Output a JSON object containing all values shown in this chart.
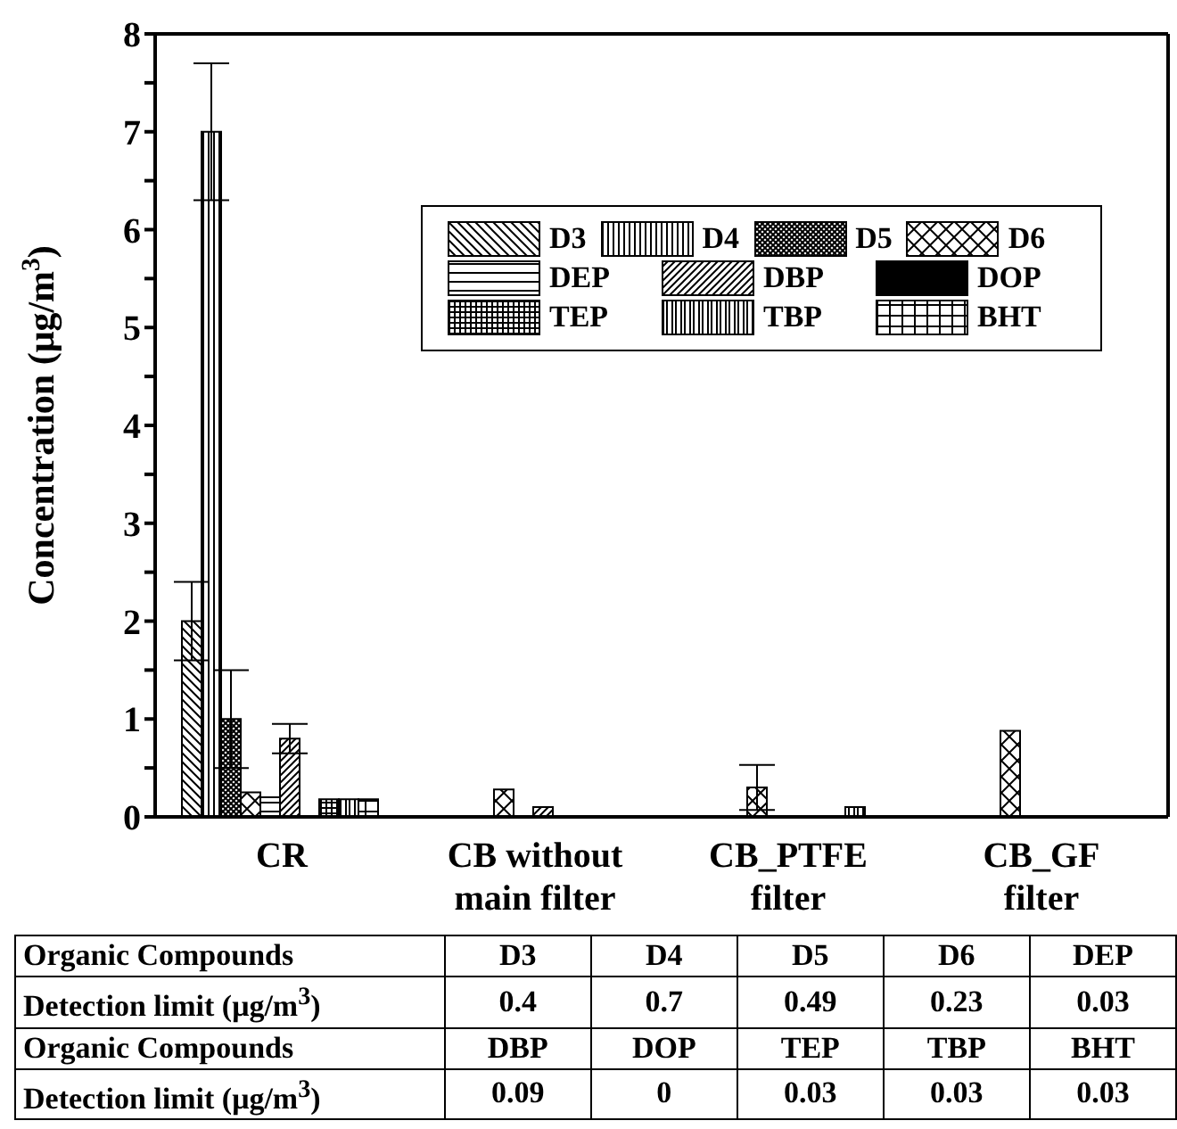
{
  "chart_data": {
    "type": "bar",
    "ylabel": "Concentration (μg/m$^{3}$)",
    "categories": [
      "CR",
      "CB without main filter",
      "CB_PTFE filter",
      "CB_GF filter"
    ],
    "series": [
      {
        "name": "D3",
        "color": "#000000",
        "values": [
          2.0,
          null,
          null,
          null
        ],
        "errors": [
          0.4,
          null,
          null,
          null
        ]
      },
      {
        "name": "D4",
        "color": "#000000",
        "values": [
          7.0,
          null,
          null,
          null
        ],
        "errors": [
          0.7,
          null,
          null,
          null
        ]
      },
      {
        "name": "D5",
        "color": "#000000",
        "values": [
          1.0,
          null,
          null,
          null
        ],
        "errors": [
          0.5,
          null,
          null,
          null
        ]
      },
      {
        "name": "D6",
        "color": "#000000",
        "values": [
          0.25,
          0.28,
          0.3,
          0.88
        ],
        "errors": [
          null,
          null,
          0.23,
          null
        ]
      },
      {
        "name": "DEP",
        "color": "#000000",
        "values": [
          0.2,
          null,
          null,
          null
        ]
      },
      {
        "name": "DBP",
        "color": "#000000",
        "values": [
          0.8,
          0.1,
          null,
          null
        ],
        "errors": [
          0.15,
          null,
          null,
          null
        ]
      },
      {
        "name": "DOP",
        "color": "#000000",
        "values": [
          null,
          null,
          null,
          null
        ]
      },
      {
        "name": "TEP",
        "color": "#000000",
        "values": [
          0.18,
          null,
          null,
          null
        ]
      },
      {
        "name": "TBP",
        "color": "#000000",
        "values": [
          0.18,
          null,
          0.1,
          null
        ]
      },
      {
        "name": "BHT",
        "color": "#000000",
        "values": [
          0.18,
          null,
          null,
          null
        ]
      }
    ],
    "ylim": [
      0,
      8
    ],
    "yticks": [
      0,
      {
        "value": 0.5,
        "label": null
      },
      1,
      {
        "value": 1.5,
        "label": null
      },
      2,
      {
        "value": 2.5,
        "label": null
      },
      3,
      {
        "value": 3.5,
        "label": null
      },
      4,
      {
        "value": 4.5,
        "label": null
      },
      5,
      {
        "value": 5.5,
        "label": null
      },
      6,
      {
        "value": 6.5,
        "label": null
      },
      7,
      {
        "value": 7.5,
        "label": null
      },
      8
    ],
    "legend": "top right",
    "grid": false,
    "annotations": [
      "Organic Compounds",
      "D3",
      "D4",
      "D5",
      "D6",
      "DEP",
      "Detection limit (μg/m$^{3}$)",
      "0.4",
      "0.7",
      "0.49",
      "0.23",
      "0.03",
      "Organic Compounds",
      "DBP",
      "DOP",
      "TEP",
      "TBP",
      "BHT",
      "Detection limit (μg/m$^{3}$)",
      "0.09",
      "0",
      "0.03",
      "0.03",
      "0.03"
    ]
  }
}
